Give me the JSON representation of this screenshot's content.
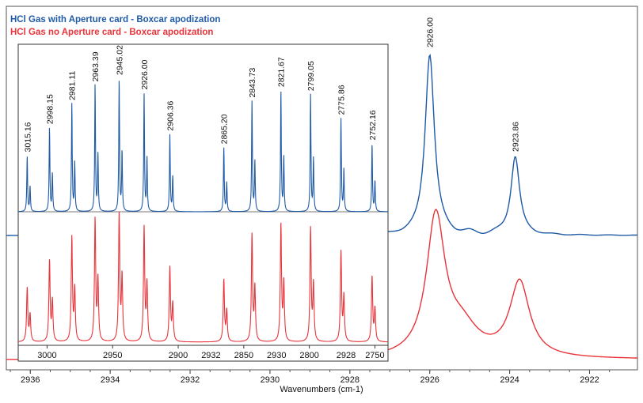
{
  "chart_data": {
    "type": "line",
    "xlabel": "Wavenumbers (cm-1)",
    "legend": [
      {
        "name": "HCl Gas with Aperture card - Boxcar apodization",
        "color": "#1f5aa6"
      },
      {
        "name": "HCl Gas no Aperture card - Boxcar apodization",
        "color": "#e8343a"
      }
    ],
    "main": {
      "xlim": [
        2936.6,
        2920.8
      ],
      "x_ticks": [
        2936,
        2934,
        2932,
        2930,
        2928,
        2926,
        2924,
        2922
      ],
      "x_tick_labels": [
        "2936",
        "2934",
        "2932",
        "2930",
        "2928",
        "2926",
        "2924",
        "2922"
      ],
      "peak_labels": [
        {
          "x": 2926.0,
          "label": "2926.00"
        },
        {
          "x": 2923.86,
          "label": "2923.86"
        }
      ]
    },
    "inset": {
      "xlim": [
        3022,
        2740
      ],
      "x_ticks": [
        3000,
        2950,
        2900,
        2850,
        2800,
        2750
      ],
      "x_tick_labels": [
        "3000",
        "2950",
        "2900",
        "2850",
        "2800",
        "2750"
      ],
      "extra_tick_labels": [
        {
          "x": 2875,
          "label": "2932"
        },
        {
          "x": 2825,
          "label": "2930"
        },
        {
          "x": 2772,
          "label": "2928"
        }
      ],
      "peaks": [
        {
          "x": 3015.16,
          "label": "3015.16",
          "h": 0.42
        },
        {
          "x": 2998.15,
          "label": "2998.15",
          "h": 0.63
        },
        {
          "x": 2981.11,
          "label": "2981.11",
          "h": 0.81
        },
        {
          "x": 2963.39,
          "label": "2963.39",
          "h": 0.95
        },
        {
          "x": 2945.02,
          "label": "2945.02",
          "h": 1.0
        },
        {
          "x": 2926.0,
          "label": "2926.00",
          "h": 0.89
        },
        {
          "x": 2906.36,
          "label": "2906.36",
          "h": 0.58
        },
        {
          "x": 2865.2,
          "label": "2865.20",
          "h": 0.48
        },
        {
          "x": 2843.73,
          "label": "2843.73",
          "h": 0.83
        },
        {
          "x": 2821.67,
          "label": "2821.67",
          "h": 0.91
        },
        {
          "x": 2799.05,
          "label": "2799.05",
          "h": 0.88
        },
        {
          "x": 2775.86,
          "label": "2775.86",
          "h": 0.7
        },
        {
          "x": 2752.16,
          "label": "2752.16",
          "h": 0.51
        }
      ]
    }
  }
}
